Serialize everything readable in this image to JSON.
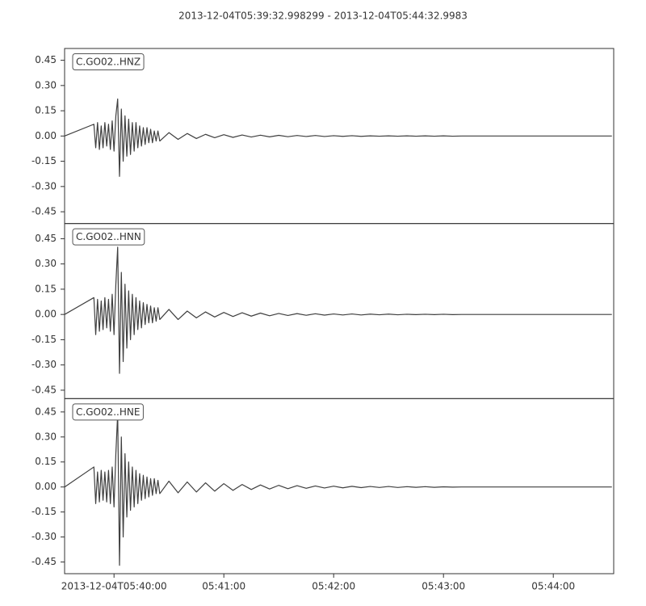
{
  "title": "2013-12-04T05:39:32.998299  -  2013-12-04T05:44:32.9983",
  "chart_data": [
    {
      "type": "line",
      "label": "C.GO02..HNZ",
      "color": "#3f3f3f",
      "xlim": [
        32.998299,
        332.9983
      ],
      "ylim": [
        -0.52,
        0.52
      ],
      "yticks": [
        {
          "value": 0.45,
          "label": "0.45"
        },
        {
          "value": 0.3,
          "label": "0.30"
        },
        0.15,
        {
          "value": 0,
          "label": "0.00"
        },
        -0.15,
        {
          "value": -0.3,
          "label": "-0.30"
        },
        -0.45
      ],
      "x": [
        33,
        49,
        50,
        51,
        52,
        53,
        54,
        55,
        56,
        57,
        58,
        59,
        60,
        61,
        62,
        63,
        64,
        65,
        66,
        67,
        68,
        69,
        70,
        71,
        72,
        73,
        74,
        75,
        76,
        77,
        78,
        79,
        80,
        81,
        82,
        83,
        84,
        85,
        90,
        95,
        100,
        105,
        110,
        115,
        120,
        125,
        130,
        135,
        140,
        145,
        150,
        155,
        160,
        165,
        170,
        175,
        180,
        185,
        190,
        195,
        200,
        205,
        210,
        215,
        220,
        225,
        230,
        235,
        240,
        245,
        250,
        332
      ],
      "values": [
        0,
        0.07,
        -0.07,
        0.08,
        -0.08,
        0.06,
        -0.07,
        0.08,
        -0.06,
        0.07,
        -0.08,
        0.09,
        -0.09,
        0.12,
        0.22,
        -0.24,
        0.16,
        -0.15,
        0.12,
        -0.12,
        0.1,
        -0.11,
        0.08,
        -0.09,
        0.08,
        -0.07,
        0.06,
        -0.06,
        0.05,
        -0.05,
        0.05,
        -0.04,
        0.04,
        -0.04,
        0.03,
        -0.03,
        0.03,
        -0.03,
        0.02,
        -0.02,
        0.015,
        -0.015,
        0.01,
        -0.01,
        0.008,
        -0.008,
        0.006,
        -0.006,
        0.005,
        -0.005,
        0.004,
        -0.004,
        0.003,
        -0.003,
        0.003,
        -0.003,
        0.002,
        -0.002,
        0.002,
        -0.002,
        0.001,
        -0.001,
        0.001,
        -0.001,
        0.001,
        -0.001,
        0.001,
        -0.001,
        0.001,
        -0.001,
        0,
        0
      ]
    },
    {
      "type": "line",
      "label": "C.GO02..HNN",
      "color": "#3f3f3f",
      "xlim": [
        32.998299,
        332.9983
      ],
      "ylim": [
        -0.5,
        0.54
      ],
      "yticks": [
        {
          "value": 0.45,
          "label": "0.45"
        },
        {
          "value": 0.3,
          "label": "0.30"
        },
        0.15,
        {
          "value": 0,
          "label": "0.00"
        },
        -0.15,
        {
          "value": -0.3,
          "label": "-0.30"
        },
        -0.45
      ],
      "x": [
        33,
        49,
        50,
        51,
        52,
        53,
        54,
        55,
        56,
        57,
        58,
        59,
        60,
        61,
        62,
        63,
        64,
        65,
        66,
        67,
        68,
        69,
        70,
        71,
        72,
        73,
        74,
        75,
        76,
        77,
        78,
        79,
        80,
        81,
        82,
        83,
        84,
        85,
        90,
        95,
        100,
        105,
        110,
        115,
        120,
        125,
        130,
        135,
        140,
        145,
        150,
        155,
        160,
        165,
        170,
        175,
        180,
        185,
        190,
        195,
        200,
        205,
        210,
        215,
        220,
        225,
        230,
        235,
        240,
        245,
        250,
        332
      ],
      "values": [
        0,
        0.1,
        -0.12,
        0.09,
        -0.1,
        0.08,
        -0.09,
        0.1,
        -0.08,
        0.09,
        -0.1,
        0.12,
        -0.12,
        0.18,
        0.4,
        -0.35,
        0.25,
        -0.28,
        0.18,
        -0.2,
        0.14,
        -0.15,
        0.12,
        -0.12,
        0.1,
        -0.09,
        0.08,
        -0.08,
        0.07,
        -0.06,
        0.06,
        -0.05,
        0.05,
        -0.05,
        0.04,
        -0.04,
        0.04,
        -0.03,
        0.03,
        -0.03,
        0.02,
        -0.02,
        0.015,
        -0.015,
        0.012,
        -0.012,
        0.01,
        -0.01,
        0.008,
        -0.008,
        0.006,
        -0.006,
        0.005,
        -0.005,
        0.004,
        -0.004,
        0.003,
        -0.003,
        0.003,
        -0.003,
        0.002,
        -0.002,
        0.002,
        -0.002,
        0.001,
        -0.001,
        0.001,
        -0.001,
        0.001,
        -0.001,
        0,
        0
      ]
    },
    {
      "type": "line",
      "label": "C.GO02..HNE",
      "color": "#3f3f3f",
      "xlim": [
        32.998299,
        332.9983
      ],
      "ylim": [
        -0.52,
        0.53
      ],
      "yticks": [
        {
          "value": 0.45,
          "label": "0.45"
        },
        {
          "value": 0.3,
          "label": "0.30"
        },
        0.15,
        {
          "value": 0,
          "label": "0.00"
        },
        -0.15,
        {
          "value": -0.3,
          "label": "-0.30"
        },
        -0.45
      ],
      "xticks": [
        {
          "value": 60,
          "label": "2013-12-04T05:40:00"
        },
        {
          "value": 120,
          "label": "05:41:00"
        },
        {
          "value": 180,
          "label": "05:42:00"
        },
        {
          "value": 240,
          "label": "05:43:00"
        },
        {
          "value": 300,
          "label": "05:44:00"
        }
      ],
      "x": [
        33,
        49,
        50,
        51,
        52,
        53,
        54,
        55,
        56,
        57,
        58,
        59,
        60,
        61,
        62,
        63,
        64,
        65,
        66,
        67,
        68,
        69,
        70,
        71,
        72,
        73,
        74,
        75,
        76,
        77,
        78,
        79,
        80,
        81,
        82,
        83,
        84,
        85,
        90,
        95,
        100,
        105,
        110,
        115,
        120,
        125,
        130,
        135,
        140,
        145,
        150,
        155,
        160,
        165,
        170,
        175,
        180,
        185,
        190,
        195,
        200,
        205,
        210,
        215,
        220,
        225,
        230,
        235,
        240,
        245,
        250,
        332
      ],
      "values": [
        0,
        0.12,
        -0.1,
        0.09,
        -0.09,
        0.1,
        -0.08,
        0.09,
        -0.09,
        0.1,
        -0.1,
        0.12,
        -0.12,
        0.2,
        0.44,
        -0.47,
        0.3,
        -0.3,
        0.2,
        -0.18,
        0.15,
        -0.14,
        0.12,
        -0.12,
        0.1,
        -0.1,
        0.08,
        -0.08,
        0.07,
        -0.07,
        0.06,
        -0.06,
        0.05,
        -0.05,
        0.05,
        -0.04,
        0.04,
        -0.04,
        0.035,
        -0.035,
        0.03,
        -0.03,
        0.025,
        -0.025,
        0.02,
        -0.02,
        0.015,
        -0.015,
        0.012,
        -0.012,
        0.01,
        -0.01,
        0.008,
        -0.008,
        0.006,
        -0.006,
        0.005,
        -0.005,
        0.004,
        -0.004,
        0.003,
        -0.003,
        0.003,
        -0.003,
        0.002,
        -0.002,
        0.002,
        -0.002,
        0.001,
        -0.001,
        0,
        0
      ]
    }
  ]
}
